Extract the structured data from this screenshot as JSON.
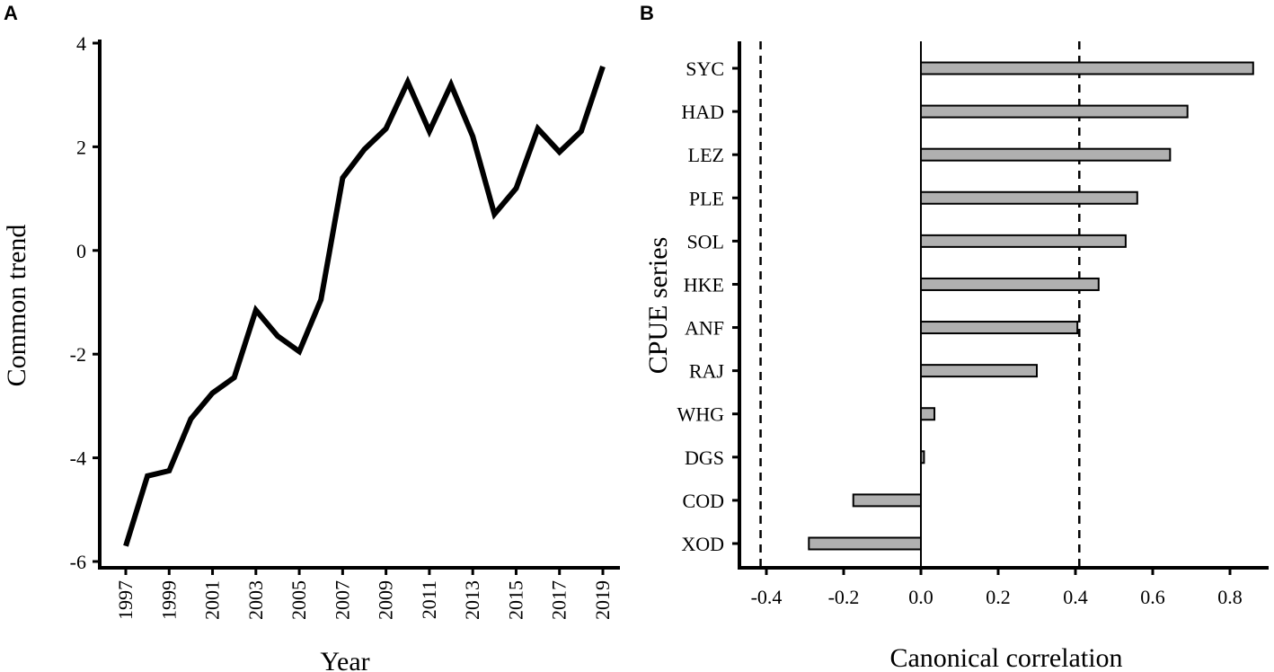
{
  "panels": [
    "A",
    "B"
  ],
  "chart_data": [
    {
      "type": "line",
      "title": "",
      "xlabel": "Year",
      "ylabel": "Common trend",
      "xlim": [
        1997,
        2019
      ],
      "ylim": [
        -6,
        4
      ],
      "yticks": [
        4,
        2,
        0,
        -2,
        -4,
        -6
      ],
      "xticks": [
        1997,
        1999,
        2001,
        2003,
        2005,
        2007,
        2009,
        2011,
        2013,
        2015,
        2017,
        2019
      ],
      "grid": false,
      "x": [
        1997,
        1998,
        1999,
        2000,
        2001,
        2002,
        2003,
        2004,
        2005,
        2006,
        2007,
        2008,
        2009,
        2010,
        2011,
        2012,
        2013,
        2014,
        2015,
        2016,
        2017,
        2018,
        2019
      ],
      "y": [
        -5.7,
        -4.35,
        -4.25,
        -3.25,
        -2.75,
        -2.45,
        -1.15,
        -1.65,
        -1.95,
        -0.95,
        1.4,
        1.95,
        2.35,
        3.25,
        2.3,
        3.2,
        2.2,
        0.7,
        1.2,
        2.35,
        1.9,
        2.3,
        3.55
      ],
      "color": "#000000"
    },
    {
      "type": "bar",
      "orientation": "horizontal",
      "title": "",
      "xlabel": "Canonical correlation",
      "ylabel": "CPUE series",
      "xlim": [
        -0.48,
        0.9
      ],
      "xticks": [
        "-0.4",
        "-0.2",
        "0.0",
        "0.2",
        "0.4",
        "0.6",
        "0.8"
      ],
      "categories": [
        "SYC",
        "HAD",
        "LEZ",
        "PLE",
        "SOL",
        "HKE",
        "ANF",
        "RAJ",
        "WHG",
        "DGS",
        "COD",
        "XOD"
      ],
      "values": [
        0.86,
        0.69,
        0.645,
        0.56,
        0.53,
        0.46,
        0.405,
        0.3,
        0.035,
        0.008,
        -0.175,
        -0.29
      ],
      "reference_lines": [
        -0.415,
        0.0,
        0.41
      ],
      "bar_color": "#b0b0b0",
      "grid": false
    }
  ]
}
